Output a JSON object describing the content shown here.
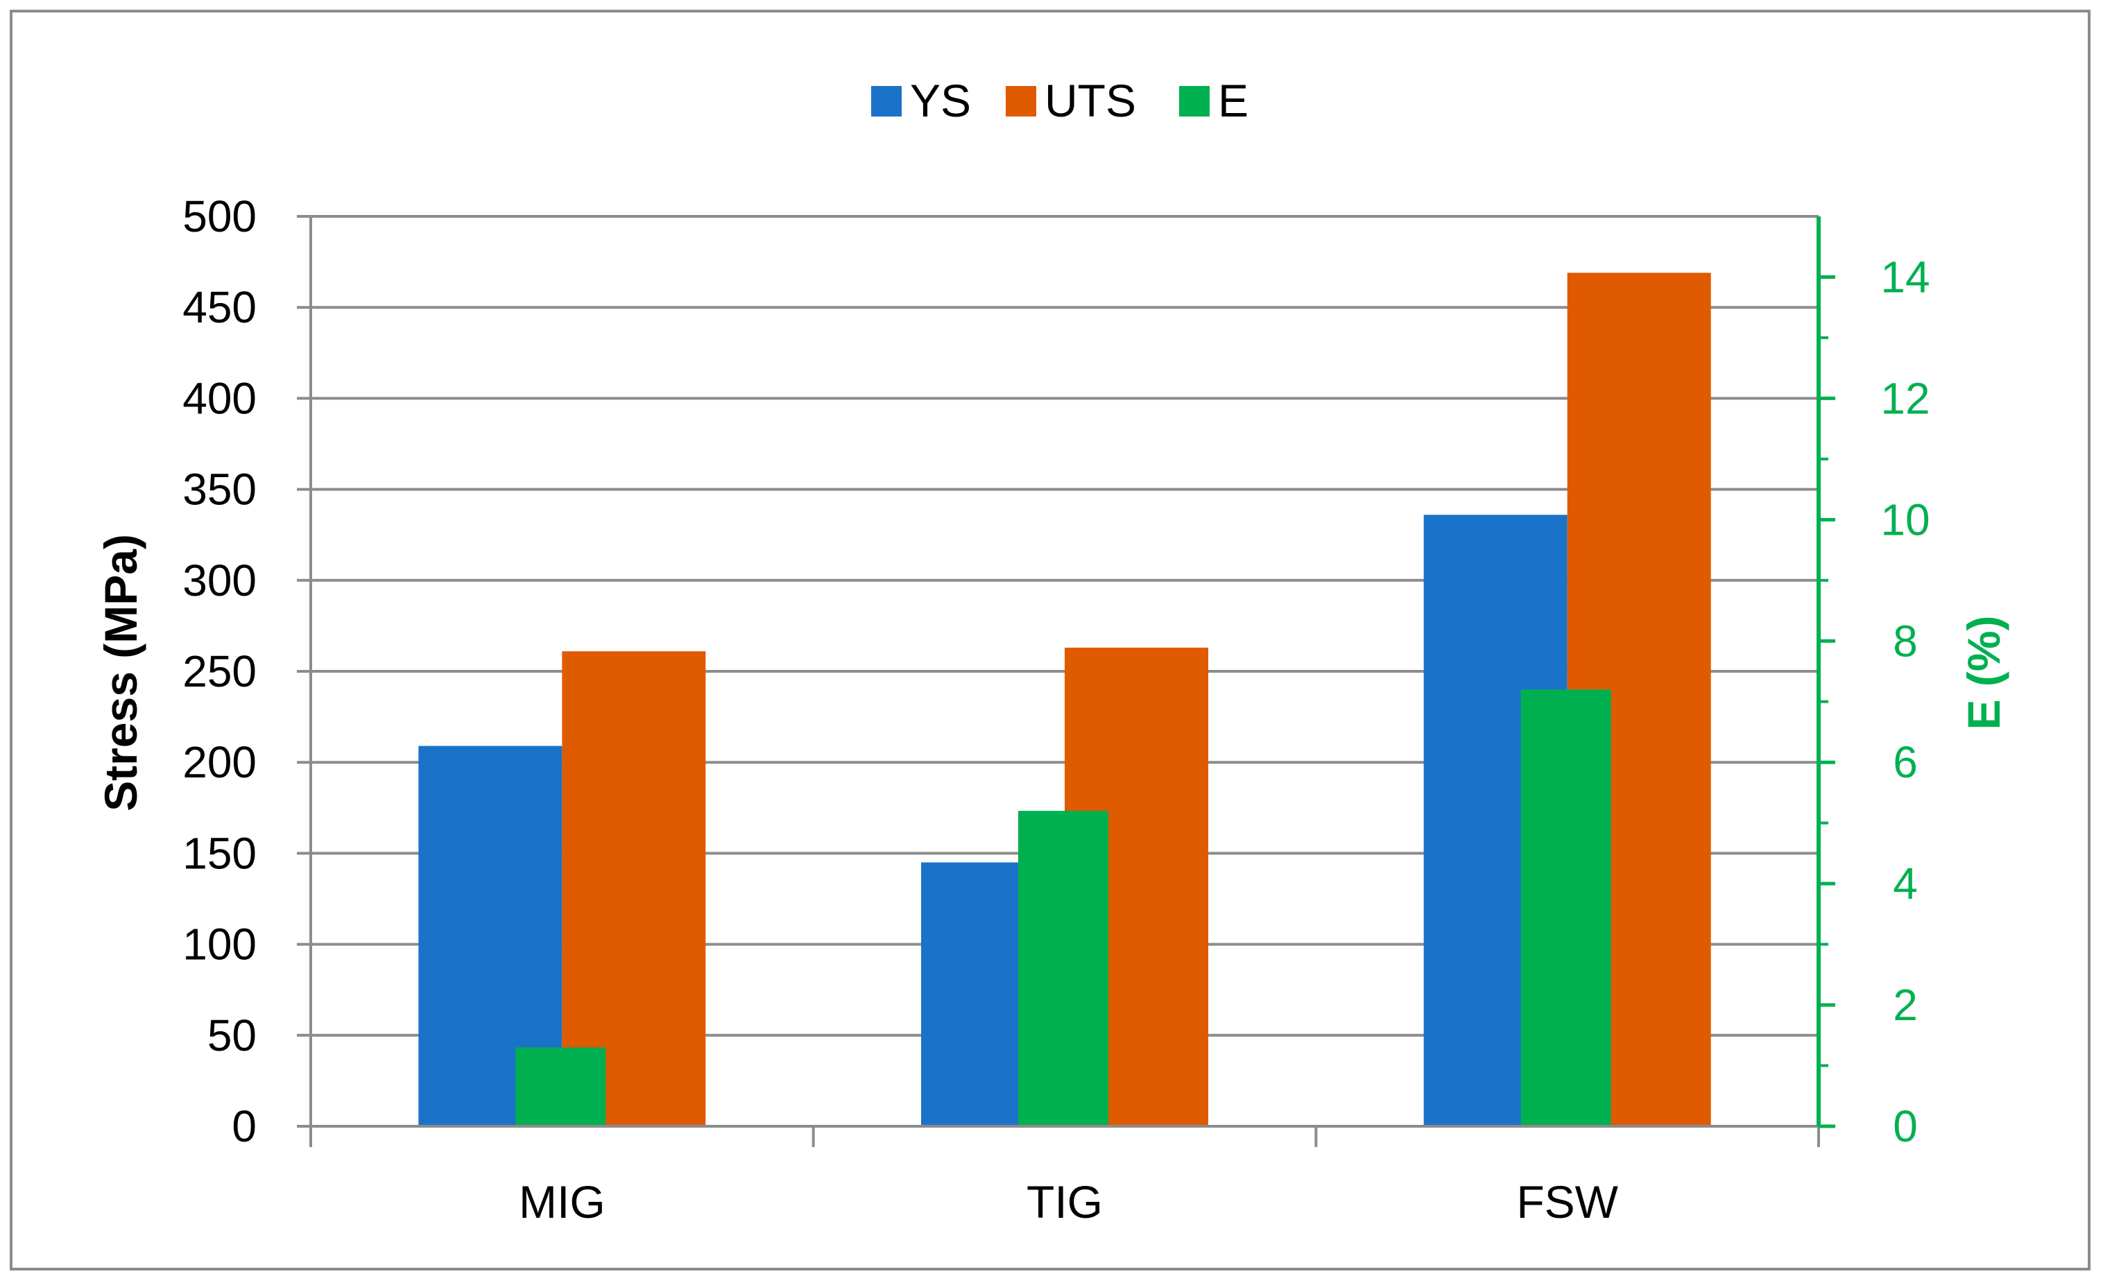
{
  "chart_data": {
    "type": "bar",
    "categories": [
      "MIG",
      "TIG",
      "FSW"
    ],
    "series": [
      {
        "name": "YS",
        "axis": "left",
        "color": "#1a73c9",
        "values": [
          209,
          145,
          336
        ]
      },
      {
        "name": "UTS",
        "axis": "left",
        "color": "#e05a00",
        "values": [
          261,
          263,
          469
        ]
      },
      {
        "name": "E",
        "axis": "right",
        "color": "#00b050",
        "values": [
          1.3,
          5.2,
          7.2
        ]
      }
    ],
    "title": "",
    "xlabel": "",
    "ylabel": "Stress (MPa)",
    "ylim": [
      0,
      500
    ],
    "yticks": [
      "0",
      "50",
      "100",
      "150",
      "200",
      "250",
      "300",
      "350",
      "400",
      "450",
      "500"
    ],
    "y2label": "E (%)",
    "y2lim": [
      0,
      15
    ],
    "y2ticks": [
      "0",
      "2",
      "4",
      "6",
      "8",
      "10",
      "12",
      "14"
    ],
    "y2_color": "#00b050",
    "grid": true,
    "legend_position": "top-center",
    "legend": [
      "YS",
      "UTS",
      "E"
    ]
  }
}
